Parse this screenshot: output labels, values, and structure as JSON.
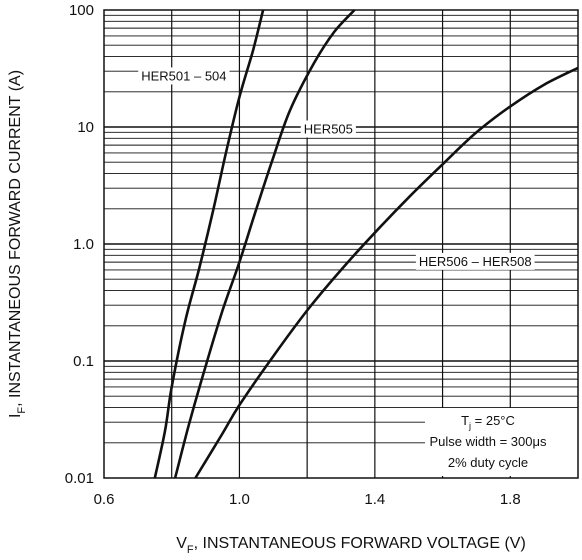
{
  "chart_data": {
    "type": "line",
    "title": "",
    "xlabel": "V_F, INSTANTANEOUS FORWARD VOLTAGE (V)",
    "xlabel_main": "V",
    "xlabel_sub": "F",
    "xlabel_rest": ", INSTANTANEOUS FORWARD VOLTAGE (V)",
    "ylabel": "I_F, INSTANTANEOUS FORWARD CURRENT (A)",
    "ylabel_main": "I",
    "ylabel_sub": "F",
    "ylabel_rest": ", INSTANTANEOUS FORWARD CURRENT (A)",
    "xlim": [
      0.6,
      2.0
    ],
    "ylim": [
      0.01,
      100
    ],
    "yscale": "log",
    "grid": true,
    "x_ticks": [
      {
        "value": 0.6,
        "label": "0.6"
      },
      {
        "value": 1.0,
        "label": "1.0"
      },
      {
        "value": 1.4,
        "label": "1.4"
      },
      {
        "value": 1.8,
        "label": "1.8"
      }
    ],
    "y_ticks": [
      {
        "value": 0.01,
        "label": "0.01"
      },
      {
        "value": 0.1,
        "label": "0.1"
      },
      {
        "value": 1,
        "label": "1.0"
      },
      {
        "value": 10,
        "label": "10"
      },
      {
        "value": 100,
        "label": "100"
      }
    ],
    "series": [
      {
        "name": "HER501 – 504",
        "points": [
          [
            0.75,
            0.01
          ],
          [
            0.78,
            0.025
          ],
          [
            0.8,
            0.06
          ],
          [
            0.84,
            0.22
          ],
          [
            0.88,
            0.6
          ],
          [
            0.92,
            1.8
          ],
          [
            0.96,
            6
          ],
          [
            1.0,
            18
          ],
          [
            1.04,
            45
          ],
          [
            1.07,
            100
          ]
        ]
      },
      {
        "name": "HER505",
        "points": [
          [
            0.81,
            0.01
          ],
          [
            0.85,
            0.028
          ],
          [
            0.9,
            0.09
          ],
          [
            0.95,
            0.27
          ],
          [
            1.0,
            0.7
          ],
          [
            1.05,
            2.0
          ],
          [
            1.1,
            5.5
          ],
          [
            1.15,
            14
          ],
          [
            1.22,
            35
          ],
          [
            1.28,
            65
          ],
          [
            1.34,
            100
          ]
        ]
      },
      {
        "name": "HER506 – HER508",
        "points": [
          [
            0.87,
            0.01
          ],
          [
            0.95,
            0.024
          ],
          [
            1.0,
            0.042
          ],
          [
            1.1,
            0.11
          ],
          [
            1.2,
            0.27
          ],
          [
            1.3,
            0.6
          ],
          [
            1.4,
            1.25
          ],
          [
            1.5,
            2.5
          ],
          [
            1.6,
            4.8
          ],
          [
            1.7,
            9.0
          ],
          [
            1.8,
            15
          ],
          [
            1.9,
            23
          ],
          [
            2.0,
            32
          ]
        ]
      }
    ],
    "series_labels": [
      {
        "text": "HER501 – 504",
        "x": 0.71,
        "y": 25,
        "anchor": "start"
      },
      {
        "text": "HER505",
        "x": 1.19,
        "y": 8.8,
        "anchor": "start"
      },
      {
        "text": "HER506 – HER508",
        "x": 1.53,
        "y": 0.65,
        "anchor": "start"
      }
    ],
    "annotation": {
      "tj_main": "T",
      "tj_sub": "j",
      "tj_rest": " = 25°C",
      "pulse": "Pulse width = 300μs",
      "duty": "2% duty cycle"
    }
  }
}
